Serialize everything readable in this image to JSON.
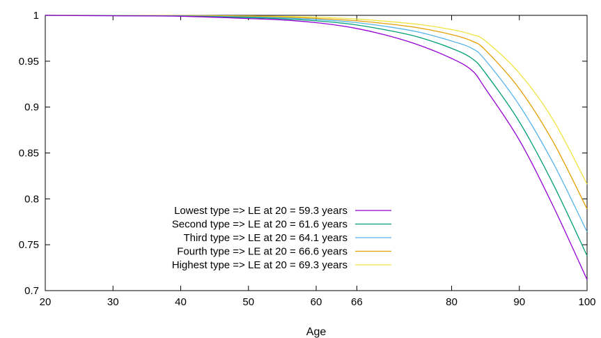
{
  "chart_data": {
    "type": "line",
    "title": "",
    "xlabel": "Age",
    "ylabel": "",
    "xlim": [
      20,
      100
    ],
    "ylim": [
      0.7,
      1.0
    ],
    "grid": false,
    "legend_position": "bottom-left",
    "x_ticks": [
      20,
      30,
      40,
      50,
      60,
      66,
      80,
      90,
      100
    ],
    "x_tick_labels": [
      "20",
      "30",
      "40",
      "50",
      "60",
      "66",
      "80",
      "90",
      "100"
    ],
    "y_ticks": [
      0.7,
      0.75,
      0.8,
      0.85,
      0.9,
      0.95,
      1.0
    ],
    "y_tick_labels": [
      "0.7",
      "0.75",
      "0.8",
      "0.85",
      "0.9",
      "0.95",
      "1"
    ],
    "x": [
      20,
      30,
      40,
      50,
      55,
      60,
      65,
      70,
      75,
      80,
      83,
      85,
      90,
      95,
      100
    ],
    "series": [
      {
        "name": "Lowest type => LE at 20 = 59.3 years",
        "color": "#9400d3",
        "values": [
          1.0,
          0.9995,
          0.999,
          0.9965,
          0.995,
          0.992,
          0.987,
          0.979,
          0.968,
          0.953,
          0.94,
          0.92,
          0.864,
          0.792,
          0.712
        ]
      },
      {
        "name": "Second type => LE at 20 = 61.6 years",
        "color": "#009e73",
        "values": [
          1.0,
          0.9996,
          0.9992,
          0.9975,
          0.9962,
          0.994,
          0.9905,
          0.9845,
          0.9765,
          0.964,
          0.953,
          0.937,
          0.884,
          0.816,
          0.738
        ]
      },
      {
        "name": "Third type => LE at 20 = 64.1 years",
        "color": "#56b4e9",
        "values": [
          1.0,
          0.9997,
          0.9994,
          0.9982,
          0.9972,
          0.9955,
          0.9928,
          0.9882,
          0.982,
          0.972,
          0.964,
          0.951,
          0.902,
          0.839,
          0.764
        ]
      },
      {
        "name": "Fourth type => LE at 20 = 66.6 years",
        "color": "#e69f00",
        "values": [
          1.0,
          0.9998,
          0.9996,
          0.9988,
          0.998,
          0.9967,
          0.9946,
          0.9912,
          0.9865,
          0.979,
          0.972,
          0.962,
          0.92,
          0.862,
          0.789
        ]
      },
      {
        "name": "Highest type => LE at 20 = 69.3 years",
        "color": "#f0e442",
        "values": [
          1.0,
          0.9999,
          0.9998,
          0.9993,
          0.9988,
          0.998,
          0.9964,
          0.9937,
          0.9902,
          0.9845,
          0.979,
          0.972,
          0.937,
          0.886,
          0.816
        ]
      }
    ]
  }
}
